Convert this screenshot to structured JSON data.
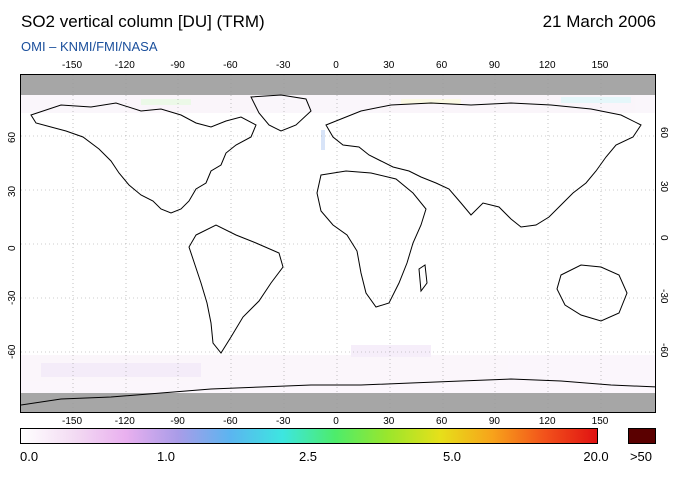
{
  "header": {
    "title": "SO2 vertical column [DU] (TRM)",
    "date": "21 March 2006",
    "credit": "OMI  –  KNMI/FMI/NASA"
  },
  "map": {
    "lon_ticks": [
      "-150",
      "-120",
      "-90",
      "-60",
      "-30",
      "0",
      "30",
      "60",
      "90",
      "120",
      "150"
    ],
    "lat_ticks": [
      "60",
      "30",
      "0",
      "-30",
      "-60"
    ],
    "no_data_color": "#a6a6a6",
    "coastline_color": "#000000",
    "grid_style": "dotted"
  },
  "colorbar": {
    "labels": [
      "0.0",
      "1.0",
      "2.5",
      "5.0",
      "20.0"
    ],
    "overflow_label": ">50",
    "overflow_color": "#5a0000",
    "gradient_colors": [
      "#ffffff",
      "#f3dcf3",
      "#e9b0ef",
      "#a99ce8",
      "#5bb5f0",
      "#3de6e0",
      "#4dec6b",
      "#9ae62c",
      "#e6e01a",
      "#f7a31b",
      "#f2521b",
      "#e01212"
    ]
  }
}
